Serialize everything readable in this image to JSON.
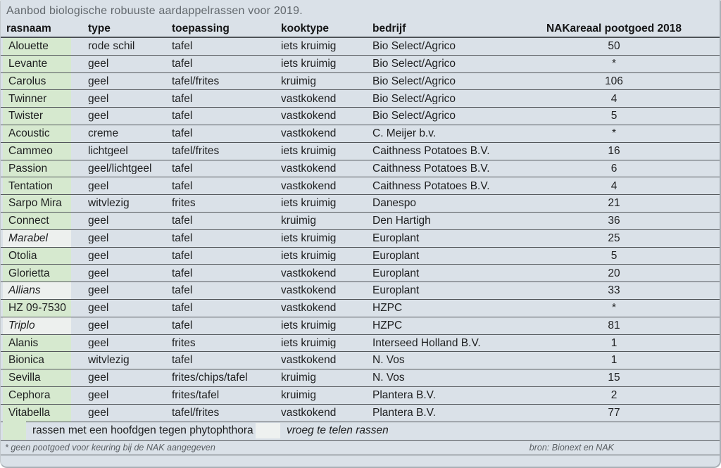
{
  "title": "Aanbod biologische robuuste aardappelrassen voor 2019.",
  "table": {
    "columns": [
      "rasnaam",
      "type",
      "toepassing",
      "kooktype",
      "bedrijf",
      "NAKareaal pootgoed 2018"
    ],
    "rows": [
      {
        "rasnaam": "Alouette",
        "type": "rode schil",
        "toepassing": "tafel",
        "kooktype": "iets kruimig",
        "bedrijf": "Bio Select/Agrico",
        "nak": "50",
        "tag": "green"
      },
      {
        "rasnaam": "Levante",
        "type": "geel",
        "toepassing": "tafel",
        "kooktype": "iets kruimig",
        "bedrijf": "Bio Select/Agrico",
        "nak": "*",
        "tag": "green"
      },
      {
        "rasnaam": "Carolus",
        "type": "geel",
        "toepassing": "tafel/frites",
        "kooktype": "kruimig",
        "bedrijf": "Bio Select/Agrico",
        "nak": "106",
        "tag": "green"
      },
      {
        "rasnaam": "Twinner",
        "type": "geel",
        "toepassing": "tafel",
        "kooktype": "vastkokend",
        "bedrijf": "Bio Select/Agrico",
        "nak": "4",
        "tag": "green"
      },
      {
        "rasnaam": "Twister",
        "type": "geel",
        "toepassing": "tafel",
        "kooktype": "vastkokend",
        "bedrijf": "Bio Select/Agrico",
        "nak": "5",
        "tag": "green"
      },
      {
        "rasnaam": "Acoustic",
        "type": "creme",
        "toepassing": "tafel",
        "kooktype": "vastkokend",
        "bedrijf": "C. Meijer b.v.",
        "nak": "*",
        "tag": "green"
      },
      {
        "rasnaam": "Cammeo",
        "type": "lichtgeel",
        "toepassing": "tafel/frites",
        "kooktype": "iets kruimig",
        "bedrijf": "Caithness Potatoes B.V.",
        "nak": "16",
        "tag": "green"
      },
      {
        "rasnaam": "Passion",
        "type": "geel/lichtgeel",
        "toepassing": "tafel",
        "kooktype": "vastkokend",
        "bedrijf": "Caithness Potatoes B.V.",
        "nak": "6",
        "tag": "green"
      },
      {
        "rasnaam": "Tentation",
        "type": "geel",
        "toepassing": "tafel",
        "kooktype": "vastkokend",
        "bedrijf": "Caithness Potatoes B.V.",
        "nak": "4",
        "tag": "green"
      },
      {
        "rasnaam": "Sarpo Mira",
        "type": "witvlezig",
        "toepassing": "frites",
        "kooktype": "iets kruimig",
        "bedrijf": "Danespo",
        "nak": "21",
        "tag": "green"
      },
      {
        "rasnaam": "Connect",
        "type": "geel",
        "toepassing": "tafel",
        "kooktype": "kruimig",
        "bedrijf": "Den Hartigh",
        "nak": "36",
        "tag": "green"
      },
      {
        "rasnaam": "Marabel",
        "type": "geel",
        "toepassing": "tafel",
        "kooktype": "iets kruimig",
        "bedrijf": "Europlant",
        "nak": "25",
        "tag": "early"
      },
      {
        "rasnaam": "Otolia",
        "type": "geel",
        "toepassing": "tafel",
        "kooktype": "iets kruimig",
        "bedrijf": "Europlant",
        "nak": "5",
        "tag": "green"
      },
      {
        "rasnaam": "Glorietta",
        "type": "geel",
        "toepassing": "tafel",
        "kooktype": "vastkokend",
        "bedrijf": "Europlant",
        "nak": "20",
        "tag": "green"
      },
      {
        "rasnaam": "Allians",
        "type": "geel",
        "toepassing": "tafel",
        "kooktype": "vastkokend",
        "bedrijf": "Europlant",
        "nak": "33",
        "tag": "early"
      },
      {
        "rasnaam": "HZ 09-7530",
        "type": "geel",
        "toepassing": "tafel",
        "kooktype": "vastkokend",
        "bedrijf": "HZPC",
        "nak": "*",
        "tag": "green"
      },
      {
        "rasnaam": "Triplo",
        "type": "geel",
        "toepassing": "tafel",
        "kooktype": "iets kruimig",
        "bedrijf": "HZPC",
        "nak": "81",
        "tag": "early"
      },
      {
        "rasnaam": "Alanis",
        "type": "geel",
        "toepassing": "frites",
        "kooktype": "iets kruimig",
        "bedrijf": "Interseed Holland B.V.",
        "nak": "1",
        "tag": "green"
      },
      {
        "rasnaam": "Bionica",
        "type": "witvlezig",
        "toepassing": "tafel",
        "kooktype": "vastkokend",
        "bedrijf": "N. Vos",
        "nak": "1",
        "tag": "green"
      },
      {
        "rasnaam": "Sevilla",
        "type": "geel",
        "toepassing": "frites/chips/tafel",
        "kooktype": "kruimig",
        "bedrijf": "N. Vos",
        "nak": "15",
        "tag": "green"
      },
      {
        "rasnaam": "Cephora",
        "type": "geel",
        "toepassing": "frites/tafel",
        "kooktype": "kruimig",
        "bedrijf": "Plantera B.V.",
        "nak": "2",
        "tag": "green"
      },
      {
        "rasnaam": "Vitabella",
        "type": "geel",
        "toepassing": "tafel/frites",
        "kooktype": "vastkokend",
        "bedrijf": "Plantera B.V.",
        "nak": "77",
        "tag": "green"
      }
    ]
  },
  "legend": {
    "green": {
      "label": "rassen met een hoofdgen tegen phytophthora"
    },
    "early": {
      "label": "vroeg te telen rassen"
    }
  },
  "footnote": "* geen pootgoed voor keuring bij de NAK aangegeven",
  "source": "bron: Bionext en NAK",
  "colors": {
    "background": "#dae1e8",
    "green_highlight": "#d6e9cf",
    "early_highlight": "#edf0ee",
    "row_line": "#53575b",
    "title_text": "#63696e",
    "body_text": "#1e1f20"
  }
}
